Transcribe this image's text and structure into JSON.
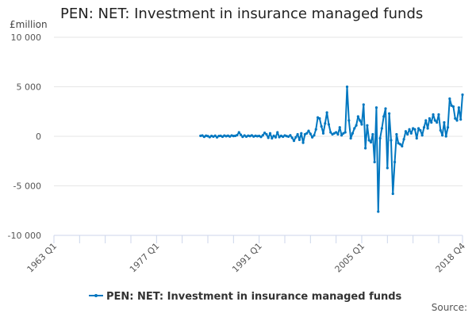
{
  "chart_data": {
    "type": "line",
    "title": "PEN: NET: Investment in insurance managed funds",
    "ylabel": "£million",
    "source_label": "Source:",
    "ylim": [
      -10000,
      10000
    ],
    "yticks": [
      10000,
      5000,
      0,
      -5000,
      -10000
    ],
    "ytick_labels": [
      "10 000",
      "5 000",
      "0",
      "-5 000",
      "-10 000"
    ],
    "xlim": [
      "1963 Q1",
      "2018 Q4"
    ],
    "xtick_labels": [
      "1963 Q1",
      "1977 Q1",
      "1991 Q1",
      "2005 Q1",
      "2018 Q4"
    ],
    "grid": true,
    "legend_position": "bottom",
    "color": "#0077c0",
    "series": [
      {
        "name": "PEN: NET: Investment in insurance managed funds",
        "x": [
          "1983 Q1",
          "1983 Q2",
          "1983 Q3",
          "1983 Q4",
          "1984 Q1",
          "1984 Q2",
          "1984 Q3",
          "1984 Q4",
          "1985 Q1",
          "1985 Q2",
          "1985 Q3",
          "1985 Q4",
          "1986 Q1",
          "1986 Q2",
          "1986 Q3",
          "1986 Q4",
          "1987 Q1",
          "1987 Q2",
          "1987 Q3",
          "1987 Q4",
          "1988 Q1",
          "1988 Q2",
          "1988 Q3",
          "1988 Q4",
          "1989 Q1",
          "1989 Q2",
          "1989 Q3",
          "1989 Q4",
          "1990 Q1",
          "1990 Q2",
          "1990 Q3",
          "1990 Q4",
          "1991 Q1",
          "1991 Q2",
          "1991 Q3",
          "1991 Q4",
          "1992 Q1",
          "1992 Q2",
          "1992 Q3",
          "1992 Q4",
          "1993 Q1",
          "1993 Q2",
          "1993 Q3",
          "1993 Q4",
          "1994 Q1",
          "1994 Q2",
          "1994 Q3",
          "1994 Q4",
          "1995 Q1",
          "1995 Q2",
          "1995 Q3",
          "1995 Q4",
          "1996 Q1",
          "1996 Q2",
          "1996 Q3",
          "1996 Q4",
          "1997 Q1",
          "1997 Q2",
          "1997 Q3",
          "1997 Q4",
          "1998 Q1",
          "1998 Q2",
          "1998 Q3",
          "1998 Q4",
          "1999 Q1",
          "1999 Q2",
          "1999 Q3",
          "1999 Q4",
          "2000 Q1",
          "2000 Q2",
          "2000 Q3",
          "2000 Q4",
          "2001 Q1",
          "2001 Q2",
          "2001 Q3",
          "2001 Q4",
          "2002 Q1",
          "2002 Q2",
          "2002 Q3",
          "2002 Q4",
          "2003 Q1",
          "2003 Q2",
          "2003 Q3",
          "2003 Q4",
          "2004 Q1",
          "2004 Q2",
          "2004 Q3",
          "2004 Q4",
          "2005 Q1",
          "2005 Q2",
          "2005 Q3",
          "2005 Q4",
          "2006 Q1",
          "2006 Q2",
          "2006 Q3",
          "2006 Q4",
          "2007 Q1",
          "2007 Q2",
          "2007 Q3",
          "2007 Q4",
          "2008 Q1",
          "2008 Q2",
          "2008 Q3",
          "2008 Q4",
          "2009 Q1",
          "2009 Q2",
          "2009 Q3",
          "2009 Q4",
          "2010 Q1",
          "2010 Q2",
          "2010 Q3",
          "2010 Q4",
          "2011 Q1",
          "2011 Q2",
          "2011 Q3",
          "2011 Q4",
          "2012 Q1",
          "2012 Q2",
          "2012 Q3",
          "2012 Q4",
          "2013 Q1",
          "2013 Q2",
          "2013 Q3",
          "2013 Q4",
          "2014 Q1",
          "2014 Q2",
          "2014 Q3",
          "2014 Q4",
          "2015 Q1",
          "2015 Q2",
          "2015 Q3",
          "2015 Q4",
          "2016 Q1",
          "2016 Q2",
          "2016 Q3",
          "2016 Q4",
          "2017 Q1",
          "2017 Q2",
          "2017 Q3",
          "2017 Q4",
          "2018 Q1",
          "2018 Q2",
          "2018 Q3",
          "2018 Q4"
        ],
        "values": [
          50,
          80,
          -50,
          60,
          20,
          -80,
          40,
          -30,
          60,
          -100,
          30,
          50,
          -40,
          70,
          10,
          60,
          -20,
          80,
          30,
          50,
          120,
          400,
          150,
          -50,
          80,
          -30,
          60,
          20,
          90,
          -20,
          50,
          10,
          40,
          -60,
          100,
          350,
          200,
          -150,
          300,
          -200,
          50,
          -100,
          400,
          -80,
          50,
          -40,
          80,
          20,
          -30,
          100,
          -150,
          -450,
          -100,
          200,
          -350,
          300,
          -650,
          200,
          300,
          550,
          250,
          -100,
          100,
          700,
          1900,
          1800,
          1000,
          300,
          1300,
          2400,
          1200,
          400,
          200,
          300,
          400,
          200,
          900,
          100,
          300,
          400,
          5000,
          1600,
          -200,
          300,
          800,
          1100,
          2000,
          1600,
          1200,
          3200,
          -1200,
          1100,
          -400,
          -600,
          200,
          -2600,
          2900,
          -7600,
          -200,
          800,
          2000,
          2800,
          -3200,
          2300,
          -400,
          -5800,
          -2600,
          200,
          -700,
          -800,
          -1000,
          -300,
          500,
          200,
          700,
          300,
          800,
          700,
          -200,
          800,
          600,
          100,
          900,
          1600,
          800,
          1800,
          1400,
          2200,
          1600,
          1400,
          2200,
          600,
          100,
          1400,
          0,
          900,
          3800,
          3100,
          3000,
          1800,
          1600,
          2900,
          1700,
          4200
        ]
      }
    ]
  }
}
